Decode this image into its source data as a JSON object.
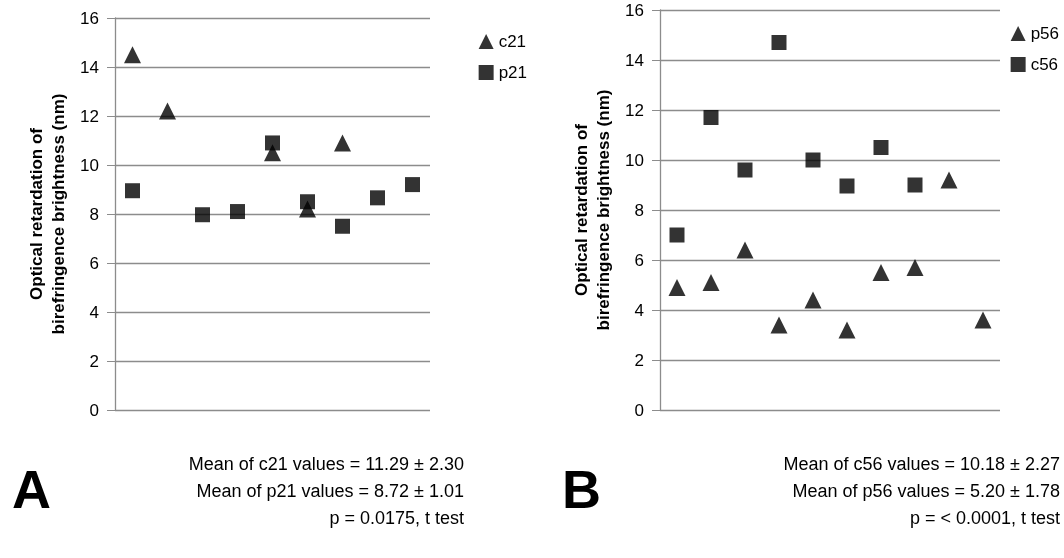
{
  "chart_data": [
    {
      "type": "scatter",
      "ylabel": "Optical retardation of\nbirefringence brightness (nm)",
      "categories": [
        null,
        null,
        null,
        null,
        null,
        null,
        null,
        null,
        null
      ],
      "ylim": [
        0,
        16
      ],
      "yticks": [
        0,
        2,
        4,
        6,
        8,
        10,
        12,
        14,
        16
      ],
      "grid": "y",
      "legend": "top right",
      "series": [
        {
          "name": "c21",
          "color": "#000000",
          "marker": "triangle",
          "values": [
            14.5,
            12.2,
            null,
            null,
            10.5,
            8.2,
            10.9,
            null,
            null
          ]
        },
        {
          "name": "p21",
          "color": "#000000",
          "marker": "square",
          "values": [
            8.95,
            null,
            7.97,
            8.1,
            10.9,
            8.5,
            7.5,
            8.66,
            9.2
          ]
        }
      ],
      "annotations": [
        "A",
        "Mean of c21 values = 11.29 ± 2.30",
        "Mean of p21 values = 8.72 ± 1.01",
        "p = 0.0175, t test"
      ]
    },
    {
      "type": "scatter",
      "ylabel": "Optical retardation of\nbirefringence brightness (nm)",
      "categories": [
        null,
        null,
        null,
        null,
        null,
        null,
        null,
        null,
        null,
        null
      ],
      "ylim": [
        0,
        16
      ],
      "yticks": [
        0,
        2,
        4,
        6,
        8,
        10,
        12,
        14,
        16
      ],
      "grid": "y",
      "legend": "top right",
      "series": [
        {
          "name": "p56",
          "color": "#000000",
          "marker": "triangle",
          "values": [
            4.9,
            5.1,
            6.4,
            3.4,
            4.4,
            3.2,
            5.5,
            5.7,
            9.2,
            3.6
          ]
        },
        {
          "name": "c56",
          "color": "#000000",
          "marker": "square",
          "values": [
            7.0,
            11.7,
            9.6,
            14.7,
            10.0,
            8.96,
            10.5,
            9.0,
            null,
            null
          ]
        }
      ],
      "annotations": [
        "B",
        "Mean of c56 values = 10.18 ± 2.27",
        "Mean of p56 values = 5.20 ± 1.78",
        "p = < 0.0001, t test"
      ]
    }
  ]
}
